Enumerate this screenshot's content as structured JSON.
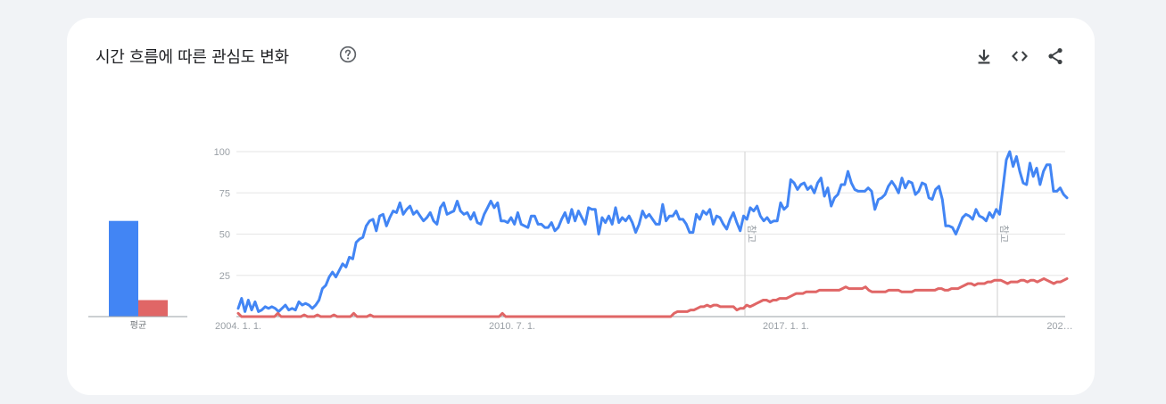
{
  "header": {
    "title": "시간 흐름에 따른 관심도 변화",
    "help_icon": "help-circle-icon",
    "tools": [
      {
        "name": "download-icon",
        "label": "download"
      },
      {
        "name": "embed-icon",
        "label": "embed"
      },
      {
        "name": "share-icon",
        "label": "share"
      }
    ]
  },
  "colors": {
    "series1": "#4285f4",
    "series2": "#e06666",
    "grid": "#e6e6e6",
    "axis": "#9aa0a6"
  },
  "chart_data": {
    "type": "line",
    "ylim": [
      0,
      100
    ],
    "yticks": [
      25,
      50,
      75,
      100
    ],
    "xtick_labels": [
      "2004. 1. 1.",
      "2010. 7. 1.",
      "2017. 1. 1.",
      "202…"
    ],
    "annotations": [
      "참고",
      "참고"
    ],
    "average": {
      "label": "평균",
      "values": [
        58,
        10
      ]
    },
    "series": [
      {
        "values": [
          5,
          11,
          3,
          10,
          4,
          9,
          3,
          4,
          6,
          5,
          6,
          5,
          3,
          5,
          7,
          4,
          5,
          4,
          9,
          7,
          8,
          7,
          5,
          7,
          10,
          17,
          19,
          24,
          27,
          24,
          28,
          32,
          30,
          36,
          35,
          45,
          47,
          48,
          55,
          58,
          59,
          52,
          61,
          62,
          55,
          60,
          64,
          63,
          69,
          62,
          65,
          67,
          62,
          64,
          61,
          58,
          60,
          63,
          58,
          56,
          66,
          69,
          62,
          63,
          64,
          70,
          64,
          62,
          63,
          59,
          63,
          57,
          56,
          62,
          66,
          70,
          66,
          69,
          58,
          58,
          57,
          60,
          56,
          63,
          56,
          55,
          54,
          61,
          61,
          56,
          56,
          54,
          54,
          57,
          52,
          54,
          59,
          63,
          57,
          65,
          58,
          64,
          60,
          56,
          66,
          65,
          65,
          50,
          60,
          57,
          61,
          56,
          66,
          57,
          60,
          58,
          61,
          57,
          51,
          56,
          64,
          60,
          62,
          59,
          56,
          56,
          68,
          58,
          61,
          61,
          64,
          59,
          59,
          56,
          51,
          51,
          62,
          59,
          64,
          62,
          65,
          56,
          61,
          60,
          56,
          53,
          59,
          63,
          57,
          52,
          61,
          59,
          66,
          64,
          67,
          61,
          58,
          60,
          57,
          58,
          58,
          69,
          65,
          67,
          83,
          81,
          77,
          80,
          81,
          77,
          79,
          75,
          81,
          84,
          73,
          78,
          67,
          72,
          74,
          80,
          80,
          88,
          81,
          77,
          76,
          76,
          76,
          78,
          76,
          65,
          71,
          72,
          74,
          79,
          82,
          79,
          75,
          84,
          78,
          82,
          81,
          74,
          76,
          81,
          80,
          72,
          71,
          77,
          79,
          71,
          55,
          55,
          54,
          50,
          55,
          60,
          62,
          61,
          59,
          65,
          61,
          60,
          58,
          63,
          60,
          65,
          62,
          78,
          95,
          101,
          91,
          97,
          88,
          81,
          80,
          93,
          85,
          90,
          80,
          88,
          92,
          92,
          76,
          76,
          78,
          74,
          72
        ]
      },
      {
        "values": [
          2,
          0,
          0,
          0,
          0,
          0,
          0,
          0,
          0,
          0,
          0,
          0,
          2,
          0,
          0,
          0,
          0,
          0,
          0,
          0,
          1,
          0,
          0,
          0,
          1,
          0,
          0,
          0,
          0,
          1,
          0,
          0,
          0,
          0,
          0,
          2,
          0,
          0,
          0,
          0,
          1,
          0,
          0,
          0,
          0,
          0,
          0,
          0,
          0,
          0,
          0,
          0,
          0,
          0,
          0,
          0,
          0,
          0,
          0,
          0,
          0,
          0,
          0,
          0,
          0,
          0,
          0,
          0,
          0,
          0,
          0,
          0,
          0,
          0,
          0,
          0,
          0,
          0,
          0,
          0,
          2,
          0,
          0,
          0,
          0,
          0,
          0,
          0,
          0,
          0,
          0,
          0,
          0,
          0,
          0,
          0,
          0,
          0,
          0,
          0,
          0,
          0,
          0,
          0,
          0,
          0,
          0,
          0,
          0,
          0,
          0,
          0,
          0,
          0,
          0,
          0,
          0,
          0,
          0,
          0,
          0,
          0,
          0,
          0,
          0,
          0,
          0,
          0,
          0,
          0,
          0,
          0,
          2,
          3,
          3,
          3,
          3,
          4,
          4,
          5,
          6,
          6,
          7,
          6,
          7,
          7,
          6,
          6,
          6,
          6,
          6,
          4,
          5,
          5,
          7,
          6,
          7,
          8,
          9,
          10,
          10,
          9,
          10,
          10,
          11,
          11,
          11,
          12,
          13,
          14,
          14,
          14,
          15,
          15,
          15,
          15,
          16,
          16,
          16,
          16,
          16,
          16,
          16,
          17,
          18,
          17,
          17,
          17,
          17,
          17,
          18,
          16,
          15,
          15,
          15,
          15,
          15,
          16,
          16,
          16,
          16,
          15,
          15,
          15,
          15,
          16,
          16,
          16,
          16,
          16,
          16,
          16,
          17,
          17,
          16,
          16,
          17,
          17,
          17,
          18,
          19,
          20,
          20,
          19,
          20,
          20,
          20,
          21,
          21,
          22,
          22,
          22,
          21,
          20,
          21,
          21,
          21,
          22,
          22,
          21,
          22,
          22,
          21,
          22,
          23,
          22,
          21,
          20,
          21,
          21,
          22,
          23
        ]
      }
    ]
  }
}
